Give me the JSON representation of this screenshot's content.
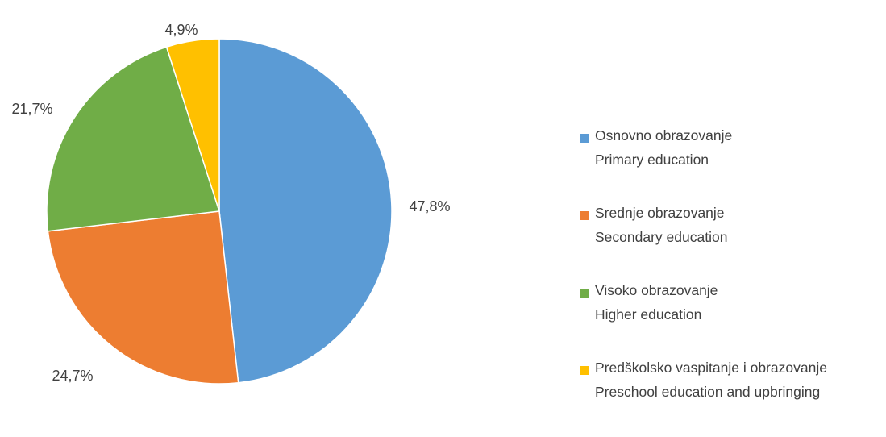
{
  "chart_data": {
    "type": "pie",
    "slices": [
      {
        "value": 47.8,
        "label": "47,8%",
        "name": "Osnovno obrazovanje",
        "name_en": "Primary education",
        "color": "#5b9bd5"
      },
      {
        "value": 24.7,
        "label": "24,7%",
        "name": "Srednje obrazovanje",
        "name_en": "Secondary education",
        "color": "#ed7d31"
      },
      {
        "value": 21.7,
        "label": "21,7%",
        "name": "Visoko obrazovanje",
        "name_en": "Higher education",
        "color": "#70ad47"
      },
      {
        "value": 4.9,
        "label": "4,9%",
        "name": "Predškolsko vaspitanje i obrazovanje",
        "name_en": "Preschool education and upbringing",
        "color": "#ffc000"
      }
    ],
    "start_angle": "12 o'clock",
    "direction": "clockwise",
    "legend_position": "right"
  }
}
